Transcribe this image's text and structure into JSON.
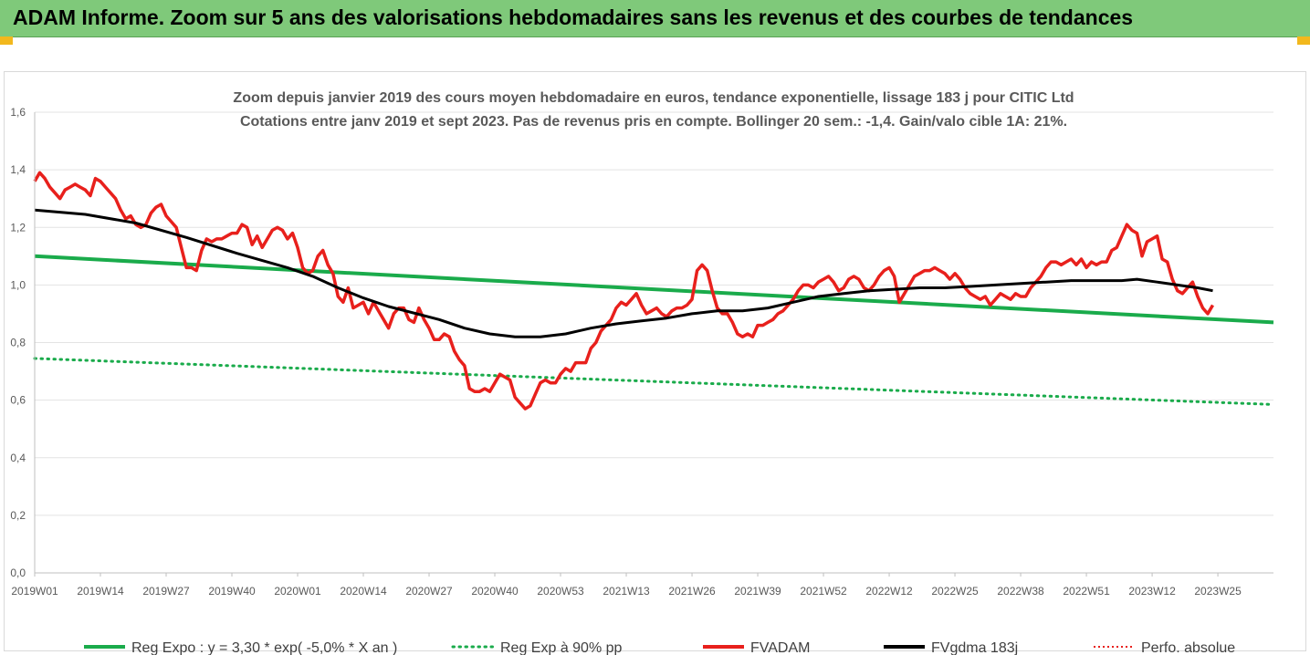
{
  "header": {
    "title": "ADAM Informe. Zoom sur 5 ans des valorisations hebdomadaires sans les revenus et des courbes de tendances"
  },
  "colors": {
    "header_bg": "#7fc97a",
    "corner": "#f2b81d",
    "fvadam": "#e8201c",
    "fvgdma": "#000000",
    "reg_expo": "#1aab4b",
    "reg_90": "#1aab4b",
    "perfo": "#e8201c"
  },
  "chart_data": {
    "type": "line",
    "subtitle_lines": [
      "Zoom depuis janvier 2019 des cours moyen hebdomadaire en euros, tendance exponentielle, lissage 183 j pour CITIC Ltd",
      "Cotations entre janv 2019 et sept 2023. Pas de  revenus pris en compte. Bollinger 20 sem.: -1,4. Gain/valo cible 1A: 21%."
    ],
    "ylim": [
      0,
      1.6
    ],
    "yticks": [
      0,
      0.2,
      0.4,
      0.6,
      0.8,
      1.0,
      1.2,
      1.4,
      1.6
    ],
    "ytick_labels": [
      "0,0",
      "0,2",
      "0,4",
      "0,6",
      "0,8",
      "1,0",
      "1,2",
      "1,4",
      "1,6"
    ],
    "x_range": [
      0,
      245
    ],
    "xticks": [
      0,
      13,
      26,
      39,
      52,
      65,
      78,
      91,
      104,
      117,
      130,
      143,
      156,
      169,
      182,
      195,
      208,
      221,
      234
    ],
    "xtick_labels": [
      "2019W01",
      "2019W14",
      "2019W27",
      "2019W40",
      "2020W01",
      "2020W14",
      "2020W27",
      "2020W40",
      "2020W53",
      "2021W13",
      "2021W26",
      "2021W39",
      "2021W52",
      "2022W12",
      "2022W25",
      "2022W38",
      "2022W51",
      "2023W12",
      "2023W25"
    ],
    "series": [
      {
        "name": "Reg  Expo : y = 3,30 * exp( -5,0% *  X   an )",
        "style": "solid-thick",
        "points": [
          [
            0,
            1.1
          ],
          [
            245,
            0.87
          ]
        ]
      },
      {
        "name": "Reg  Exp à 90% pp",
        "style": "dotted",
        "points": [
          [
            0,
            0.745
          ],
          [
            245,
            0.585
          ]
        ]
      },
      {
        "name": "FVADAM",
        "style": "solid",
        "points": [
          [
            0,
            1.36
          ],
          [
            1,
            1.39
          ],
          [
            2,
            1.37
          ],
          [
            3,
            1.34
          ],
          [
            4,
            1.32
          ],
          [
            5,
            1.3
          ],
          [
            6,
            1.33
          ],
          [
            7,
            1.34
          ],
          [
            8,
            1.35
          ],
          [
            9,
            1.34
          ],
          [
            10,
            1.33
          ],
          [
            11,
            1.31
          ],
          [
            12,
            1.37
          ],
          [
            13,
            1.36
          ],
          [
            14,
            1.34
          ],
          [
            15,
            1.32
          ],
          [
            16,
            1.3
          ],
          [
            17,
            1.26
          ],
          [
            18,
            1.23
          ],
          [
            19,
            1.24
          ],
          [
            20,
            1.21
          ],
          [
            21,
            1.2
          ],
          [
            22,
            1.21
          ],
          [
            23,
            1.25
          ],
          [
            24,
            1.27
          ],
          [
            25,
            1.28
          ],
          [
            26,
            1.24
          ],
          [
            27,
            1.22
          ],
          [
            28,
            1.2
          ],
          [
            29,
            1.13
          ],
          [
            30,
            1.06
          ],
          [
            31,
            1.06
          ],
          [
            32,
            1.05
          ],
          [
            33,
            1.12
          ],
          [
            34,
            1.16
          ],
          [
            35,
            1.15
          ],
          [
            36,
            1.16
          ],
          [
            37,
            1.16
          ],
          [
            38,
            1.17
          ],
          [
            39,
            1.18
          ],
          [
            40,
            1.18
          ],
          [
            41,
            1.21
          ],
          [
            42,
            1.2
          ],
          [
            43,
            1.14
          ],
          [
            44,
            1.17
          ],
          [
            45,
            1.13
          ],
          [
            46,
            1.16
          ],
          [
            47,
            1.19
          ],
          [
            48,
            1.2
          ],
          [
            49,
            1.19
          ],
          [
            50,
            1.16
          ],
          [
            51,
            1.18
          ],
          [
            52,
            1.13
          ],
          [
            53,
            1.06
          ],
          [
            54,
            1.04
          ],
          [
            55,
            1.05
          ],
          [
            56,
            1.1
          ],
          [
            57,
            1.12
          ],
          [
            58,
            1.07
          ],
          [
            59,
            1.04
          ],
          [
            60,
            0.96
          ],
          [
            61,
            0.94
          ],
          [
            62,
            0.99
          ],
          [
            63,
            0.92
          ],
          [
            64,
            0.93
          ],
          [
            65,
            0.94
          ],
          [
            66,
            0.9
          ],
          [
            67,
            0.94
          ],
          [
            68,
            0.91
          ],
          [
            69,
            0.88
          ],
          [
            70,
            0.85
          ],
          [
            71,
            0.9
          ],
          [
            72,
            0.92
          ],
          [
            73,
            0.92
          ],
          [
            74,
            0.88
          ],
          [
            75,
            0.87
          ],
          [
            76,
            0.92
          ],
          [
            77,
            0.88
          ],
          [
            78,
            0.85
          ],
          [
            79,
            0.81
          ],
          [
            80,
            0.81
          ],
          [
            81,
            0.83
          ],
          [
            82,
            0.82
          ],
          [
            83,
            0.77
          ],
          [
            84,
            0.74
          ],
          [
            85,
            0.72
          ],
          [
            86,
            0.64
          ],
          [
            87,
            0.63
          ],
          [
            88,
            0.63
          ],
          [
            89,
            0.64
          ],
          [
            90,
            0.63
          ],
          [
            91,
            0.66
          ],
          [
            92,
            0.69
          ],
          [
            93,
            0.68
          ],
          [
            94,
            0.67
          ],
          [
            95,
            0.61
          ],
          [
            96,
            0.59
          ],
          [
            97,
            0.57
          ],
          [
            98,
            0.58
          ],
          [
            99,
            0.62
          ],
          [
            100,
            0.66
          ],
          [
            101,
            0.67
          ],
          [
            102,
            0.66
          ],
          [
            103,
            0.66
          ],
          [
            104,
            0.69
          ],
          [
            105,
            0.71
          ],
          [
            106,
            0.7
          ],
          [
            107,
            0.73
          ],
          [
            108,
            0.73
          ],
          [
            109,
            0.73
          ],
          [
            110,
            0.78
          ],
          [
            111,
            0.8
          ],
          [
            112,
            0.84
          ],
          [
            113,
            0.86
          ],
          [
            114,
            0.88
          ],
          [
            115,
            0.92
          ],
          [
            116,
            0.94
          ],
          [
            117,
            0.93
          ],
          [
            118,
            0.95
          ],
          [
            119,
            0.97
          ],
          [
            120,
            0.93
          ],
          [
            121,
            0.9
          ],
          [
            122,
            0.91
          ],
          [
            123,
            0.92
          ],
          [
            124,
            0.9
          ],
          [
            125,
            0.89
          ],
          [
            126,
            0.91
          ],
          [
            127,
            0.92
          ],
          [
            128,
            0.92
          ],
          [
            129,
            0.93
          ],
          [
            130,
            0.95
          ],
          [
            131,
            1.05
          ],
          [
            132,
            1.07
          ],
          [
            133,
            1.05
          ],
          [
            134,
            0.98
          ],
          [
            135,
            0.92
          ],
          [
            136,
            0.9
          ],
          [
            137,
            0.9
          ],
          [
            138,
            0.87
          ],
          [
            139,
            0.83
          ],
          [
            140,
            0.82
          ],
          [
            141,
            0.83
          ],
          [
            142,
            0.82
          ],
          [
            143,
            0.86
          ],
          [
            144,
            0.86
          ],
          [
            145,
            0.87
          ],
          [
            146,
            0.88
          ],
          [
            147,
            0.9
          ],
          [
            148,
            0.91
          ],
          [
            149,
            0.93
          ],
          [
            150,
            0.95
          ],
          [
            151,
            0.98
          ],
          [
            152,
            1.0
          ],
          [
            153,
            1.0
          ],
          [
            154,
            0.99
          ],
          [
            155,
            1.01
          ],
          [
            156,
            1.02
          ],
          [
            157,
            1.03
          ],
          [
            158,
            1.01
          ],
          [
            159,
            0.98
          ],
          [
            160,
            0.99
          ],
          [
            161,
            1.02
          ],
          [
            162,
            1.03
          ],
          [
            163,
            1.02
          ],
          [
            164,
            0.99
          ],
          [
            165,
            0.98
          ],
          [
            166,
            1.0
          ],
          [
            167,
            1.03
          ],
          [
            168,
            1.05
          ],
          [
            169,
            1.06
          ],
          [
            170,
            1.03
          ],
          [
            171,
            0.94
          ],
          [
            172,
            0.97
          ],
          [
            173,
            1.0
          ],
          [
            174,
            1.03
          ],
          [
            175,
            1.04
          ],
          [
            176,
            1.05
          ],
          [
            177,
            1.05
          ],
          [
            178,
            1.06
          ],
          [
            179,
            1.05
          ],
          [
            180,
            1.04
          ],
          [
            181,
            1.02
          ],
          [
            182,
            1.04
          ],
          [
            183,
            1.02
          ],
          [
            184,
            0.99
          ],
          [
            185,
            0.97
          ],
          [
            186,
            0.96
          ],
          [
            187,
            0.95
          ],
          [
            188,
            0.96
          ],
          [
            189,
            0.93
          ],
          [
            190,
            0.95
          ],
          [
            191,
            0.97
          ],
          [
            192,
            0.96
          ],
          [
            193,
            0.95
          ],
          [
            194,
            0.97
          ],
          [
            195,
            0.96
          ],
          [
            196,
            0.96
          ],
          [
            197,
            0.99
          ],
          [
            198,
            1.01
          ],
          [
            199,
            1.03
          ],
          [
            200,
            1.06
          ],
          [
            201,
            1.08
          ],
          [
            202,
            1.08
          ],
          [
            203,
            1.07
          ],
          [
            204,
            1.08
          ],
          [
            205,
            1.09
          ],
          [
            206,
            1.07
          ],
          [
            207,
            1.09
          ],
          [
            208,
            1.06
          ],
          [
            209,
            1.08
          ],
          [
            210,
            1.07
          ],
          [
            211,
            1.08
          ],
          [
            212,
            1.08
          ],
          [
            213,
            1.12
          ],
          [
            214,
            1.13
          ],
          [
            215,
            1.17
          ],
          [
            216,
            1.21
          ],
          [
            217,
            1.19
          ],
          [
            218,
            1.18
          ],
          [
            219,
            1.1
          ],
          [
            220,
            1.15
          ],
          [
            221,
            1.16
          ],
          [
            222,
            1.17
          ],
          [
            223,
            1.09
          ],
          [
            224,
            1.08
          ],
          [
            225,
            1.02
          ],
          [
            226,
            0.98
          ],
          [
            227,
            0.97
          ],
          [
            228,
            0.99
          ],
          [
            229,
            1.01
          ],
          [
            230,
            0.96
          ],
          [
            231,
            0.92
          ],
          [
            232,
            0.9
          ],
          [
            233,
            0.93
          ]
        ]
      },
      {
        "name": "FVgdma  183j",
        "style": "solid",
        "points": [
          [
            0,
            1.26
          ],
          [
            10,
            1.245
          ],
          [
            20,
            1.215
          ],
          [
            30,
            1.165
          ],
          [
            40,
            1.11
          ],
          [
            50,
            1.06
          ],
          [
            55,
            1.03
          ],
          [
            60,
            0.99
          ],
          [
            65,
            0.955
          ],
          [
            70,
            0.925
          ],
          [
            80,
            0.88
          ],
          [
            85,
            0.85
          ],
          [
            90,
            0.83
          ],
          [
            95,
            0.82
          ],
          [
            100,
            0.82
          ],
          [
            105,
            0.83
          ],
          [
            110,
            0.85
          ],
          [
            115,
            0.865
          ],
          [
            120,
            0.875
          ],
          [
            125,
            0.885
          ],
          [
            130,
            0.9
          ],
          [
            135,
            0.91
          ],
          [
            140,
            0.91
          ],
          [
            145,
            0.92
          ],
          [
            150,
            0.94
          ],
          [
            155,
            0.96
          ],
          [
            160,
            0.97
          ],
          [
            165,
            0.98
          ],
          [
            170,
            0.985
          ],
          [
            175,
            0.99
          ],
          [
            180,
            0.99
          ],
          [
            185,
            0.995
          ],
          [
            190,
            1.0
          ],
          [
            195,
            1.005
          ],
          [
            200,
            1.01
          ],
          [
            205,
            1.015
          ],
          [
            210,
            1.015
          ],
          [
            215,
            1.015
          ],
          [
            218,
            1.02
          ],
          [
            222,
            1.01
          ],
          [
            226,
            1.0
          ],
          [
            230,
            0.99
          ],
          [
            233,
            0.98
          ]
        ]
      }
    ],
    "legend": [
      {
        "label": "Reg  Expo : y = 3,30 * exp( -5,0% *  X   an )",
        "style": "solid-thick",
        "color": "#1aab4b"
      },
      {
        "label": "Reg  Exp à 90% pp",
        "style": "dotted",
        "color": "#1aab4b"
      },
      {
        "label": "FVADAM",
        "style": "solid-thick",
        "color": "#e8201c"
      },
      {
        "label": "FVgdma  183j",
        "style": "solid-thick",
        "color": "#000000"
      },
      {
        "label": "Perfo. absolue",
        "style": "dotted-thin",
        "color": "#e8201c"
      }
    ],
    "legend_position": "bottom",
    "grid": "horizontal"
  }
}
